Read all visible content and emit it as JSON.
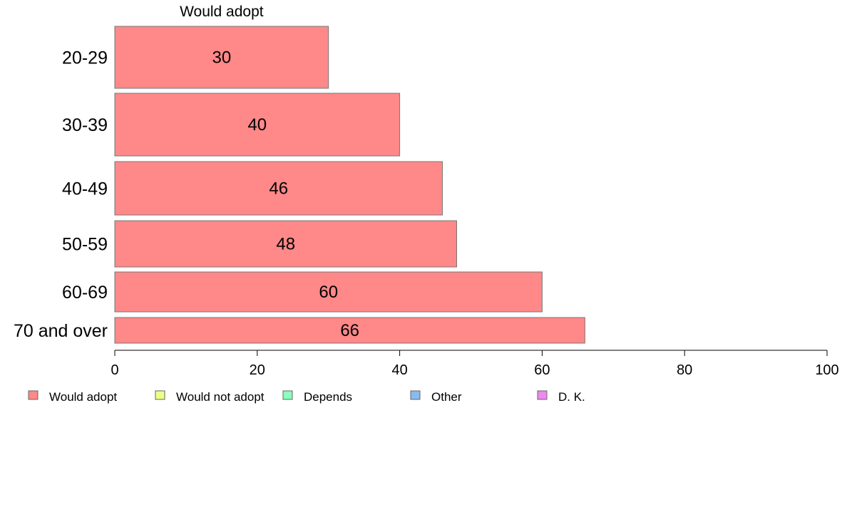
{
  "chart_data": {
    "type": "bar",
    "orientation": "horizontal",
    "stacked": true,
    "column_title": "Would adopt",
    "categories": [
      "20-29",
      "30-39",
      "40-49",
      "50-59",
      "60-69",
      "70 and over"
    ],
    "series": [
      {
        "name": "Would adopt",
        "color": "#ff8888",
        "values": [
          30,
          40,
          46,
          48,
          60,
          66
        ]
      }
    ],
    "legend": [
      {
        "name": "Would adopt",
        "color": "#ff8888"
      },
      {
        "name": "Would not adopt",
        "color": "#eeff88"
      },
      {
        "name": "Depends",
        "color": "#88ffbb"
      },
      {
        "name": "Other",
        "color": "#88bbee"
      },
      {
        "name": "D. K.",
        "color": "#ee88ee"
      }
    ],
    "legend_position": "bottom-left",
    "xlim": [
      0,
      100
    ],
    "xticks": [
      0,
      20,
      40,
      60,
      80,
      100
    ],
    "grid": false,
    "xlabel": "",
    "ylabel": ""
  }
}
